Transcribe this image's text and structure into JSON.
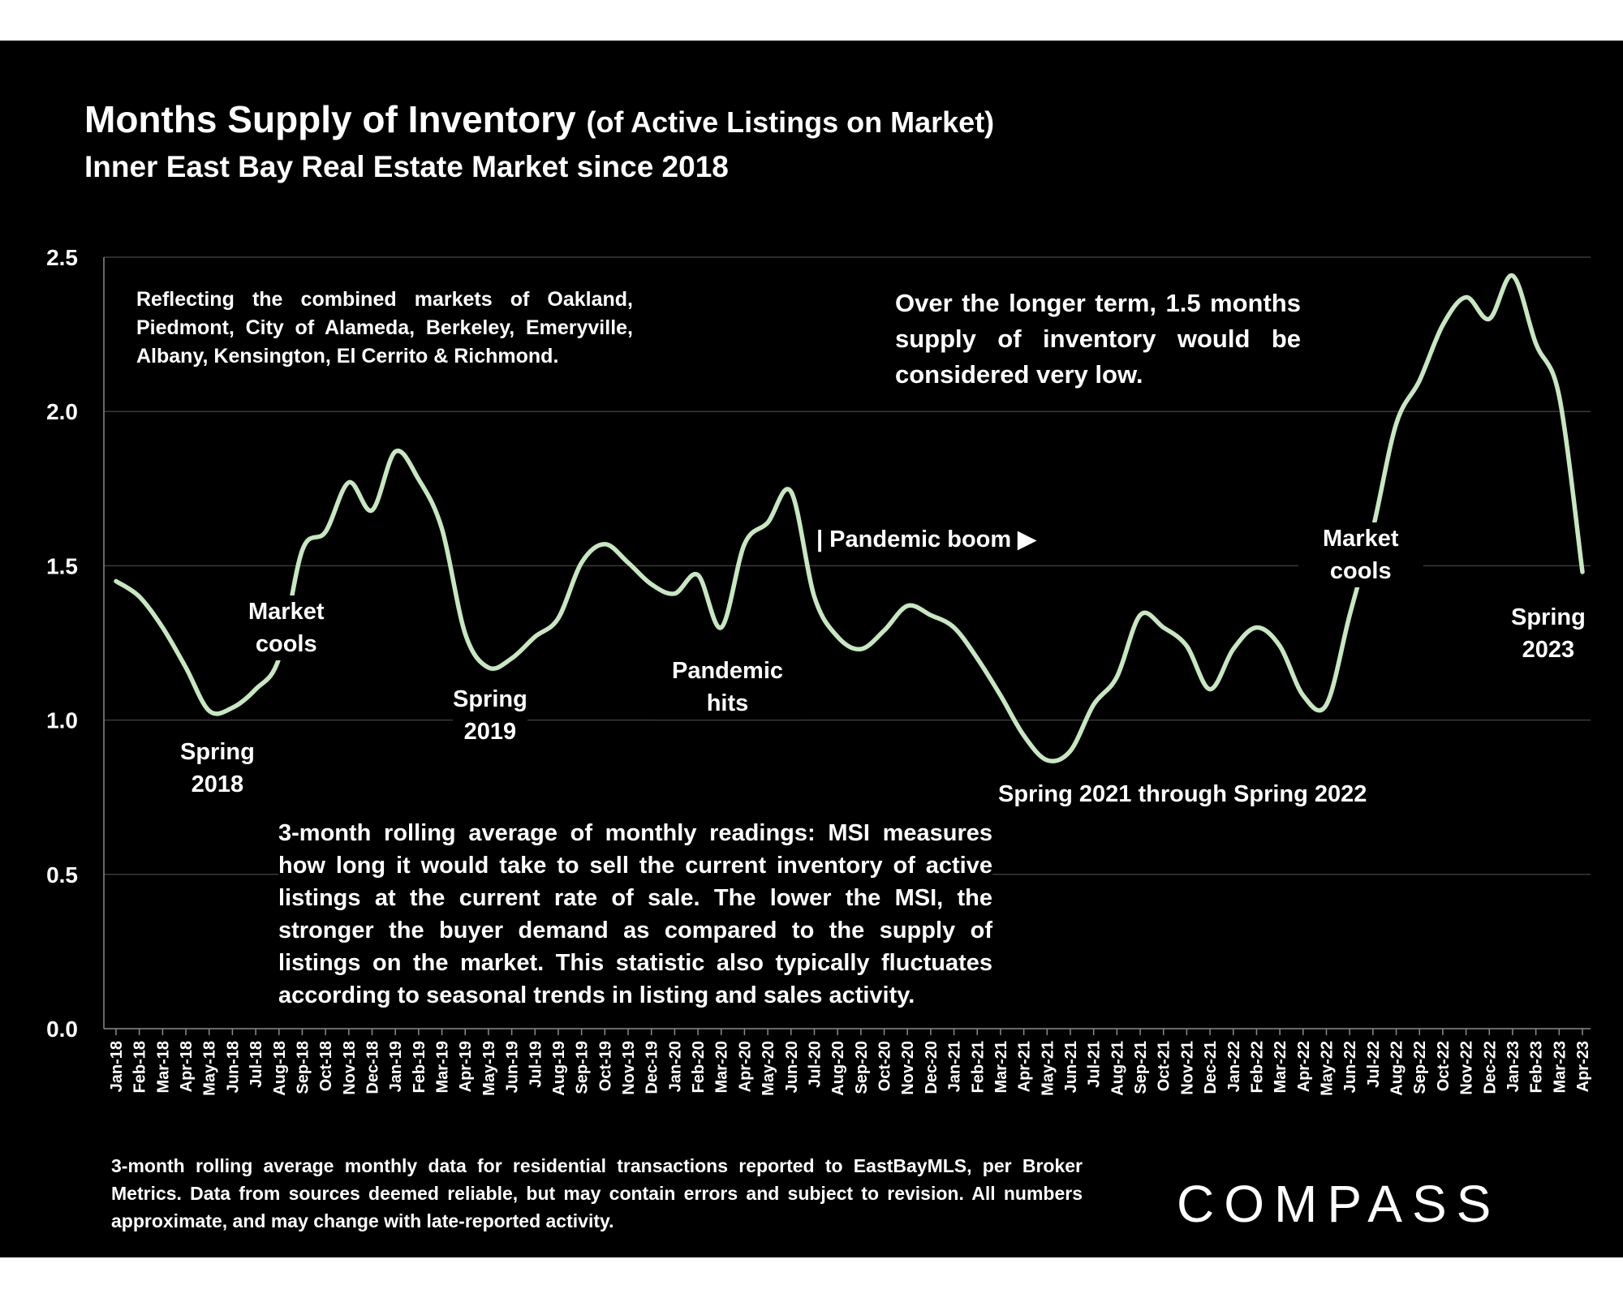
{
  "header": {
    "title_main": "Months Supply of Inventory",
    "title_paren": "(of Active Listings on Market)",
    "subtitle": "Inner East Bay Real Estate Market since 2018"
  },
  "notes": {
    "markets": "Reflecting the combined markets of Oakland, Piedmont, City of Alameda, Berkeley, Emeryville, Albany, Kensington, El Cerrito & Richmond.",
    "long_term": "Over the longer term, 1.5 months supply of inventory would be considered very low.",
    "msi_explanation": "3-month rolling average of monthly readings: MSI measures how long it would take to sell the current inventory of active listings at the current rate of sale. The lower the MSI, the stronger the buyer demand as compared to the supply of listings on the market. This statistic also typically fluctuates according to seasonal trends in listing and sales activity."
  },
  "annotations": {
    "spring_2018_l1": "Spring",
    "spring_2018_l2": "2018",
    "market_cools_1_l1": "Market",
    "market_cools_1_l2": "cools",
    "spring_2019_l1": "Spring",
    "spring_2019_l2": "2019",
    "pandemic_hits_l1": "Pandemic",
    "pandemic_hits_l2": "hits",
    "pandemic_boom": "| Pandemic boom ▶",
    "spring_2021_2022": "Spring 2021 through Spring 2022",
    "market_cools_2_l1": "Market",
    "market_cools_2_l2": "cools",
    "spring_2023_l1": "Spring",
    "spring_2023_l2": "2023"
  },
  "footnote": "3-month rolling average monthly data for residential transactions reported to EastBayMLS, per Broker Metrics. Data from sources deemed reliable, but may contain errors and subject to revision. All numbers approximate, and may change with late-reported activity.",
  "brand": {
    "logo_text": "COMPASS"
  },
  "colors": {
    "background": "#000000",
    "line": "#c8e6c2",
    "text": "#ffffff",
    "grid": "#3a3a3a"
  },
  "chart_data": {
    "type": "line",
    "title": "Months Supply of Inventory (of Active Listings on Market)",
    "subtitle": "Inner East Bay Real Estate Market since 2018",
    "xlabel": "",
    "ylabel": "",
    "ylim": [
      0,
      2.5
    ],
    "yticks": [
      "0.0",
      "0.5",
      "1.0",
      "1.5",
      "2.0",
      "2.5"
    ],
    "grid": true,
    "legend": "none",
    "categories": [
      "Jan-18",
      "Feb-18",
      "Mar-18",
      "Apr-18",
      "May-18",
      "Jun-18",
      "Jul-18",
      "Aug-18",
      "Sep-18",
      "Oct-18",
      "Nov-18",
      "Dec-18",
      "Jan-19",
      "Feb-19",
      "Mar-19",
      "Apr-19",
      "May-19",
      "Jun-19",
      "Jul-19",
      "Aug-19",
      "Sep-19",
      "Oct-19",
      "Nov-19",
      "Dec-19",
      "Jan-20",
      "Feb-20",
      "Mar-20",
      "Apr-20",
      "May-20",
      "Jun-20",
      "Jul-20",
      "Aug-20",
      "Sep-20",
      "Oct-20",
      "Nov-20",
      "Dec-20",
      "Jan-21",
      "Feb-21",
      "Mar-21",
      "Apr-21",
      "May-21",
      "Jun-21",
      "Jul-21",
      "Aug-21",
      "Sep-21",
      "Oct-21",
      "Nov-21",
      "Dec-21",
      "Jan-22",
      "Feb-22",
      "Mar-22",
      "Apr-22",
      "May-22",
      "Jun-22",
      "Jul-22",
      "Aug-22",
      "Sep-22",
      "Oct-22",
      "Nov-22",
      "Dec-22",
      "Jan-23",
      "Feb-23",
      "Mar-23",
      "Apr-23"
    ],
    "series": [
      {
        "values": [
          1.45,
          1.4,
          1.3,
          1.17,
          1.03,
          1.04,
          1.1,
          1.2,
          1.55,
          1.61,
          1.77,
          1.68,
          1.87,
          1.78,
          1.62,
          1.28,
          1.17,
          1.2,
          1.27,
          1.33,
          1.51,
          1.57,
          1.51,
          1.44,
          1.41,
          1.47,
          1.3,
          1.57,
          1.64,
          1.74,
          1.4,
          1.27,
          1.23,
          1.29,
          1.37,
          1.34,
          1.3,
          1.2,
          1.08,
          0.95,
          0.87,
          0.9,
          1.05,
          1.14,
          1.34,
          1.3,
          1.24,
          1.1,
          1.23,
          1.3,
          1.24,
          1.08,
          1.05,
          1.34,
          1.62,
          1.96,
          2.1,
          2.28,
          2.37,
          2.3,
          2.44,
          2.22,
          2.05,
          1.48
        ]
      }
    ]
  }
}
